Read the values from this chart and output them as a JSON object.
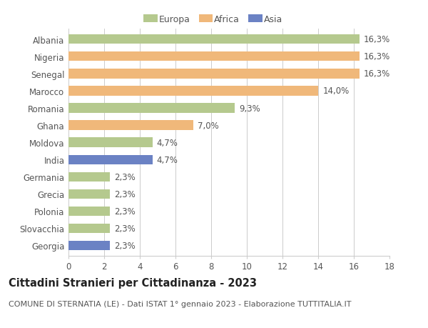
{
  "categories": [
    "Albania",
    "Nigeria",
    "Senegal",
    "Marocco",
    "Romania",
    "Ghana",
    "Moldova",
    "India",
    "Germania",
    "Grecia",
    "Polonia",
    "Slovacchia",
    "Georgia"
  ],
  "values": [
    16.3,
    16.3,
    16.3,
    14.0,
    9.3,
    7.0,
    4.7,
    4.7,
    2.3,
    2.3,
    2.3,
    2.3,
    2.3
  ],
  "labels": [
    "16,3%",
    "16,3%",
    "16,3%",
    "14,0%",
    "9,3%",
    "7,0%",
    "4,7%",
    "4,7%",
    "2,3%",
    "2,3%",
    "2,3%",
    "2,3%",
    "2,3%"
  ],
  "continents": [
    "Europa",
    "Africa",
    "Africa",
    "Africa",
    "Europa",
    "Africa",
    "Europa",
    "Asia",
    "Europa",
    "Europa",
    "Europa",
    "Europa",
    "Asia"
  ],
  "colors": {
    "Europa": "#b5c98e",
    "Africa": "#f0b87a",
    "Asia": "#6b82c4"
  },
  "xlim": [
    0,
    18
  ],
  "xticks": [
    0,
    2,
    4,
    6,
    8,
    10,
    12,
    14,
    16,
    18
  ],
  "title": "Cittadini Stranieri per Cittadinanza - 2023",
  "subtitle": "COMUNE DI STERNATIA (LE) - Dati ISTAT 1° gennaio 2023 - Elaborazione TUTTITALIA.IT",
  "bg_color": "#ffffff",
  "grid_color": "#cccccc",
  "bar_height": 0.55,
  "label_fontsize": 8.5,
  "title_fontsize": 10.5,
  "subtitle_fontsize": 8,
  "ytick_fontsize": 8.5,
  "xtick_fontsize": 8.5,
  "legend_order": [
    "Europa",
    "Africa",
    "Asia"
  ]
}
